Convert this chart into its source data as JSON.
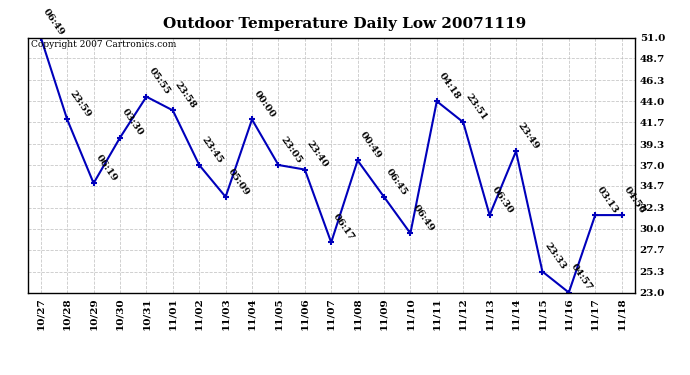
{
  "title": "Outdoor Temperature Daily Low 20071119",
  "copyright": "Copyright 2007 Cartronics.com",
  "x_labels": [
    "10/27",
    "10/28",
    "10/29",
    "10/30",
    "10/31",
    "11/01",
    "11/02",
    "11/03",
    "11/04",
    "11/05",
    "11/06",
    "11/07",
    "11/08",
    "11/09",
    "11/10",
    "11/11",
    "11/12",
    "11/13",
    "11/14",
    "11/15",
    "11/16",
    "11/17",
    "11/18"
  ],
  "y_values": [
    51.0,
    42.0,
    35.0,
    40.0,
    44.5,
    43.0,
    37.0,
    33.5,
    42.0,
    37.0,
    36.5,
    28.5,
    37.5,
    33.5,
    29.5,
    44.0,
    41.7,
    31.5,
    38.5,
    25.3,
    23.0,
    31.5,
    31.5
  ],
  "point_labels": [
    "06:49",
    "23:59",
    "06:19",
    "03:30",
    "05:55",
    "23:58",
    "23:45",
    "05:09",
    "00:00",
    "23:05",
    "23:40",
    "06:17",
    "00:49",
    "06:45",
    "06:49",
    "04:18",
    "23:51",
    "06:30",
    "23:49",
    "23:33",
    "04:57",
    "03:13",
    "04:56"
  ],
  "ylim": [
    23.0,
    51.0
  ],
  "yticks": [
    23.0,
    25.3,
    27.7,
    30.0,
    32.3,
    34.7,
    37.0,
    39.3,
    41.7,
    44.0,
    46.3,
    48.7,
    51.0
  ],
  "line_color": "#0000bb",
  "marker_color": "#0000bb",
  "bg_color": "#ffffff",
  "grid_color": "#bbbbbb",
  "title_fontsize": 11,
  "label_fontsize": 7,
  "tick_fontsize": 7.5,
  "copyright_fontsize": 6.5
}
